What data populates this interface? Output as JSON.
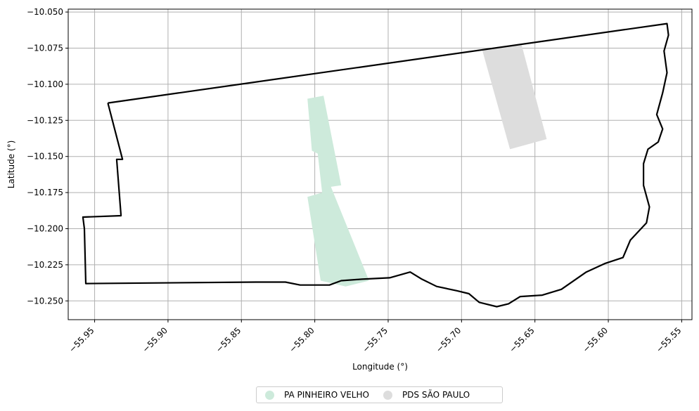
{
  "chart_data": {
    "type": "map",
    "xlabel": "Longitude (°)",
    "ylabel": "Latitude (°)",
    "xlim": [
      -55.968,
      -55.543
    ],
    "ylim": [
      -10.263,
      -10.048
    ],
    "xticks": [
      -55.95,
      -55.9,
      -55.85,
      -55.8,
      -55.75,
      -55.7,
      -55.65,
      -55.6,
      -55.55
    ],
    "xtick_labels": [
      "−55.95",
      "−55.90",
      "−55.85",
      "−55.80",
      "−55.75",
      "−55.70",
      "−55.65",
      "−55.60",
      "−55.55"
    ],
    "yticks": [
      -10.05,
      -10.075,
      -10.1,
      -10.125,
      -10.15,
      -10.175,
      -10.2,
      -10.225,
      -10.25
    ],
    "ytick_labels": [
      "−10.050",
      "−10.075",
      "−10.100",
      "−10.125",
      "−10.150",
      "−10.175",
      "−10.200",
      "−10.225",
      "−10.250"
    ],
    "grid": true,
    "legend_position": "bottom-center",
    "boundary": {
      "color": "#000000",
      "coords": [
        [
          -55.941,
          -10.113
        ],
        [
          -55.56,
          -10.058
        ],
        [
          -55.559,
          -10.066
        ],
        [
          -55.562,
          -10.077
        ],
        [
          -55.56,
          -10.092
        ],
        [
          -55.563,
          -10.106
        ],
        [
          -55.567,
          -10.121
        ],
        [
          -55.563,
          -10.131
        ],
        [
          -55.566,
          -10.14
        ],
        [
          -55.573,
          -10.145
        ],
        [
          -55.576,
          -10.155
        ],
        [
          -55.576,
          -10.17
        ],
        [
          -55.572,
          -10.185
        ],
        [
          -55.574,
          -10.196
        ],
        [
          -55.585,
          -10.208
        ],
        [
          -55.59,
          -10.22
        ],
        [
          -55.602,
          -10.224
        ],
        [
          -55.615,
          -10.23
        ],
        [
          -55.632,
          -10.242
        ],
        [
          -55.645,
          -10.246
        ],
        [
          -55.66,
          -10.247
        ],
        [
          -55.668,
          -10.252
        ],
        [
          -55.676,
          -10.254
        ],
        [
          -55.688,
          -10.251
        ],
        [
          -55.695,
          -10.245
        ],
        [
          -55.703,
          -10.243
        ],
        [
          -55.717,
          -10.24
        ],
        [
          -55.727,
          -10.235
        ],
        [
          -55.735,
          -10.23
        ],
        [
          -55.749,
          -10.234
        ],
        [
          -55.768,
          -10.235
        ],
        [
          -55.782,
          -10.236
        ],
        [
          -55.79,
          -10.239
        ],
        [
          -55.81,
          -10.239
        ],
        [
          -55.82,
          -10.237
        ],
        [
          -55.84,
          -10.237
        ],
        [
          -55.956,
          -10.238
        ],
        [
          -55.957,
          -10.2
        ],
        [
          -55.958,
          -10.192
        ],
        [
          -55.932,
          -10.191
        ],
        [
          -55.935,
          -10.152
        ],
        [
          -55.931,
          -10.152
        ],
        [
          -55.941,
          -10.113
        ]
      ]
    },
    "series": [
      {
        "name": "PA PINHEIRO VELHO",
        "color": "#cdeadb",
        "polygons": [
          [
            [
              -55.805,
              -10.11
            ],
            [
              -55.794,
              -10.108
            ],
            [
              -55.782,
              -10.17
            ],
            [
              -55.789,
              -10.171
            ],
            [
              -55.763,
              -10.236
            ],
            [
              -55.779,
              -10.24
            ],
            [
              -55.796,
              -10.236
            ],
            [
              -55.805,
              -10.178
            ],
            [
              -55.795,
              -10.175
            ],
            [
              -55.798,
              -10.148
            ],
            [
              -55.802,
              -10.146
            ]
          ]
        ]
      },
      {
        "name": "PDS SÃO PAULO",
        "color": "#dddddd",
        "polygons": [
          [
            [
              -55.686,
              -10.076
            ],
            [
              -55.659,
              -10.073
            ],
            [
              -55.642,
              -10.138
            ],
            [
              -55.667,
              -10.145
            ]
          ]
        ]
      }
    ]
  }
}
